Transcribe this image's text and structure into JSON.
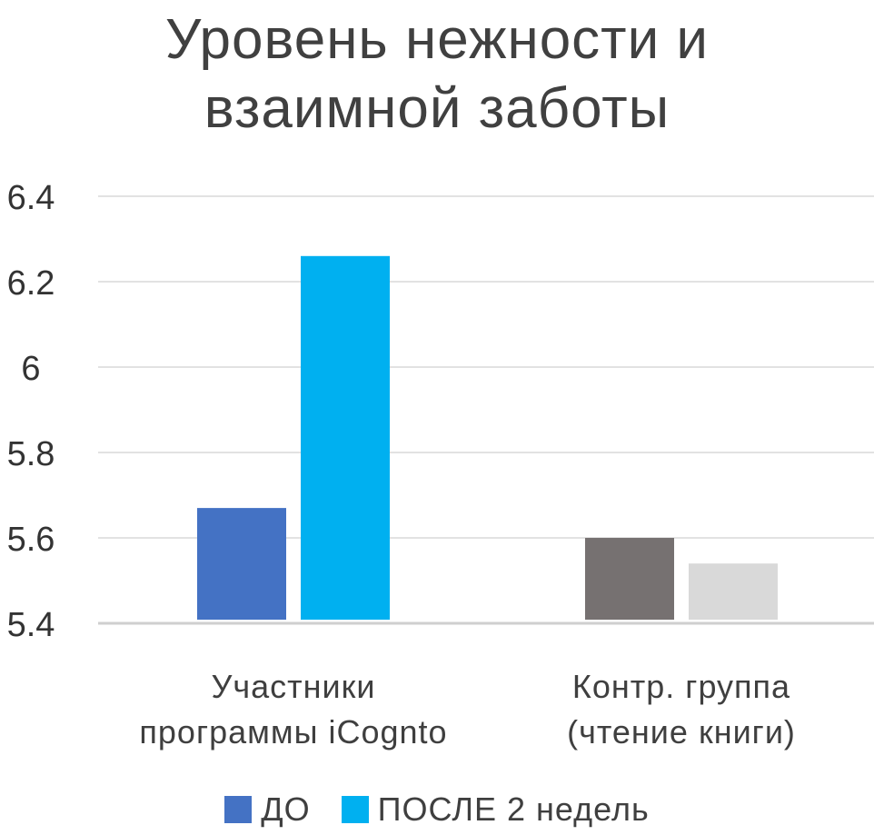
{
  "chart_data": {
    "type": "bar",
    "title": "Уровень нежности и взаимной заботы",
    "title_lines": [
      "Уровень нежности и",
      "взаимной заботы"
    ],
    "categories": [
      "Участники программы iCognto",
      "Контр. группа (чтение книги)"
    ],
    "category_lines": [
      [
        "Участники",
        "программы iCognto"
      ],
      [
        "Контр. группа",
        "(чтение книги)"
      ]
    ],
    "series": [
      {
        "name": "ДО",
        "values": [
          5.67,
          5.6
        ],
        "colors": [
          "#4472C4",
          "#767171"
        ]
      },
      {
        "name": "ПОСЛЕ 2 недель",
        "values": [
          6.26,
          5.54
        ],
        "colors": [
          "#00B0F0",
          "#D9D9D9"
        ]
      }
    ],
    "y_ticks": [
      "5.4",
      "5.6",
      "5.8",
      "6",
      "6.2",
      "6.4"
    ],
    "ylim": [
      5.4,
      6.4
    ],
    "grid": true,
    "legend_position": "bottom",
    "legend_colors": [
      "#4472C4",
      "#00B0F0"
    ]
  }
}
